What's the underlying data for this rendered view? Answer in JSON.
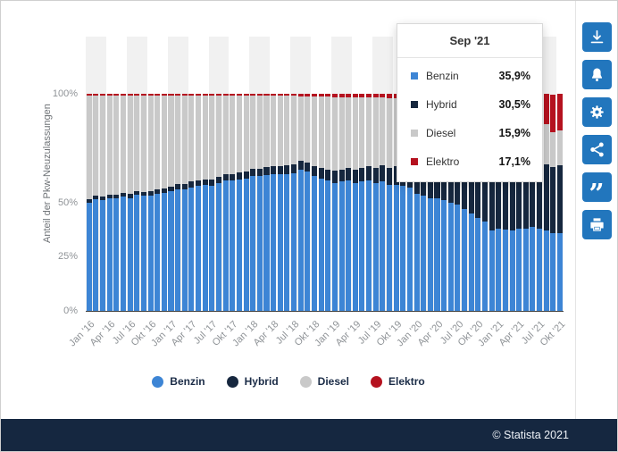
{
  "footer": {
    "copyright": "© Statista 2021"
  },
  "sidebar": {
    "button_color": "#2276bd",
    "cite_glyph": "”",
    "buttons": [
      "download-icon",
      "bell-icon",
      "gear-icon",
      "share-icon",
      "cite-icon",
      "print-icon"
    ]
  },
  "tooltip": {
    "title": "Sep '21",
    "rows": [
      {
        "label": "Benzin",
        "value": "35,9%",
        "color": "#3d85d5"
      },
      {
        "label": "Hybrid",
        "value": "30,5%",
        "color": "#16273e"
      },
      {
        "label": "Diesel",
        "value": "15,9%",
        "color": "#c9c9c9"
      },
      {
        "label": "Elektro",
        "value": "17,1%",
        "color": "#b5121f"
      }
    ]
  },
  "chart_data": {
    "type": "bar",
    "stacked": true,
    "title": "",
    "xlabel": "",
    "ylabel": "Anteil der Pkw-Neuzulassungen",
    "ylim": [
      0,
      100
    ],
    "grid": false,
    "legend_position": "bottom",
    "x_tick_step": 3,
    "stripe_colors": [
      "#f1f1f1",
      "#ffffff"
    ],
    "highlighted_category": "Sep '21",
    "y_ticks": [
      {
        "label": "100%",
        "value": 100
      },
      {
        "label": "50%",
        "value": 50
      },
      {
        "label": "25%",
        "value": 25
      },
      {
        "label": "0%",
        "value": 0
      }
    ],
    "categories": [
      "Jan '16",
      "Feb '16",
      "Mär '16",
      "Apr '16",
      "Mai '16",
      "Jun '16",
      "Jul '16",
      "Aug '16",
      "Sep '16",
      "Okt '16",
      "Nov '16",
      "Dez '16",
      "Jan '17",
      "Feb '17",
      "Mär '17",
      "Apr '17",
      "Mai '17",
      "Jun '17",
      "Jul '17",
      "Aug '17",
      "Sep '17",
      "Okt '17",
      "Nov '17",
      "Dez '17",
      "Jan '18",
      "Feb '18",
      "Mär '18",
      "Apr '18",
      "Mai '18",
      "Jun '18",
      "Jul '18",
      "Aug '18",
      "Sep '18",
      "Okt '18",
      "Nov '18",
      "Dez '18",
      "Jan '19",
      "Feb '19",
      "Mär '19",
      "Apr '19",
      "Mai '19",
      "Jun '19",
      "Jul '19",
      "Aug '19",
      "Sep '19",
      "Okt '19",
      "Nov '19",
      "Dez '19",
      "Jan '20",
      "Feb '20",
      "Mär '20",
      "Apr '20",
      "Mai '20",
      "Jun '20",
      "Jul '20",
      "Aug '20",
      "Sep '20",
      "Okt '20",
      "Nov '20",
      "Dez '20",
      "Jan '21",
      "Feb '21",
      "Mär '21",
      "Apr '21",
      "Mai '21",
      "Jun '21",
      "Jul '21",
      "Aug '21",
      "Sep '21",
      "Okt '21"
    ],
    "series": [
      {
        "name": "Benzin",
        "color": "#3d85d5",
        "values": [
          50,
          51.5,
          51,
          52,
          52,
          52.5,
          52,
          53.5,
          53,
          53,
          54,
          54.5,
          55,
          56,
          56,
          57,
          57.5,
          58,
          57.5,
          59,
          60,
          60,
          60.5,
          61,
          62,
          62,
          62.5,
          63,
          63,
          63,
          63.5,
          65,
          64,
          62,
          61,
          60,
          59,
          59.5,
          60,
          59,
          59.5,
          60,
          59,
          59.5,
          58,
          58,
          57.5,
          57,
          54,
          53,
          52,
          52,
          51,
          50,
          49,
          47,
          45,
          43,
          41,
          37,
          38,
          37.5,
          37,
          38,
          38,
          38.5,
          38,
          37,
          35.9,
          36
        ]
      },
      {
        "name": "Hybrid",
        "color": "#16273e",
        "values": [
          1.5,
          1.5,
          1.5,
          1.7,
          1.7,
          1.7,
          1.8,
          1.8,
          1.8,
          2,
          2,
          2,
          2.2,
          2.3,
          2.4,
          2.5,
          2.6,
          2.7,
          2.8,
          2.9,
          3,
          3.1,
          3.2,
          3.3,
          3.4,
          3.5,
          3.6,
          3.7,
          3.8,
          3.9,
          4,
          4,
          4.5,
          4.5,
          5,
          5,
          5.5,
          5.5,
          6,
          6,
          6.5,
          6.5,
          7,
          7.5,
          8,
          8.5,
          9,
          9.5,
          12,
          13,
          14,
          13,
          14,
          15,
          16,
          18,
          20,
          23,
          25,
          27,
          28,
          28,
          29,
          29,
          29.5,
          29,
          30,
          30.5,
          30.5,
          31
        ]
      },
      {
        "name": "Diesel",
        "color": "#c9c9c9",
        "values": [
          47.8,
          46.3,
          46.8,
          45.6,
          45.6,
          45.1,
          45.5,
          44,
          44.5,
          44.3,
          43.3,
          42.8,
          42,
          40.9,
          40.8,
          39.7,
          39.1,
          38.4,
          38.8,
          37.2,
          36,
          35.9,
          35.3,
          34.7,
          33.6,
          33.5,
          32.9,
          32.3,
          32.2,
          32.1,
          31.5,
          29.9,
          30.4,
          32.4,
          32.9,
          33.8,
          34,
          33.5,
          32.5,
          33.4,
          32.4,
          31.8,
          32.2,
          31.2,
          32,
          31.5,
          31.5,
          31.5,
          31,
          30.5,
          30,
          31.5,
          31.5,
          31,
          29.5,
          28.5,
          26.5,
          25.5,
          24,
          22,
          23.5,
          24,
          22,
          22.5,
          22,
          20,
          20,
          18.5,
          15.9,
          16
        ]
      },
      {
        "name": "Elektro",
        "color": "#b5121f",
        "values": [
          0.7,
          0.7,
          0.7,
          0.7,
          0.7,
          0.7,
          0.7,
          0.7,
          0.7,
          0.7,
          0.7,
          0.7,
          0.8,
          0.8,
          0.8,
          0.8,
          0.8,
          0.9,
          0.9,
          0.9,
          1,
          1,
          1,
          1,
          1,
          1,
          1,
          1,
          1,
          1,
          1,
          1.1,
          1.1,
          1.1,
          1.1,
          1.2,
          1.5,
          1.5,
          1.5,
          1.6,
          1.6,
          1.7,
          1.8,
          1.8,
          2,
          2,
          2,
          2,
          3,
          3.5,
          4,
          3.5,
          3.5,
          4,
          5.5,
          6.5,
          8.5,
          8.5,
          10,
          14,
          10.5,
          10.5,
          12,
          10.5,
          10.5,
          12.5,
          12,
          14,
          17.1,
          17
        ]
      }
    ]
  }
}
